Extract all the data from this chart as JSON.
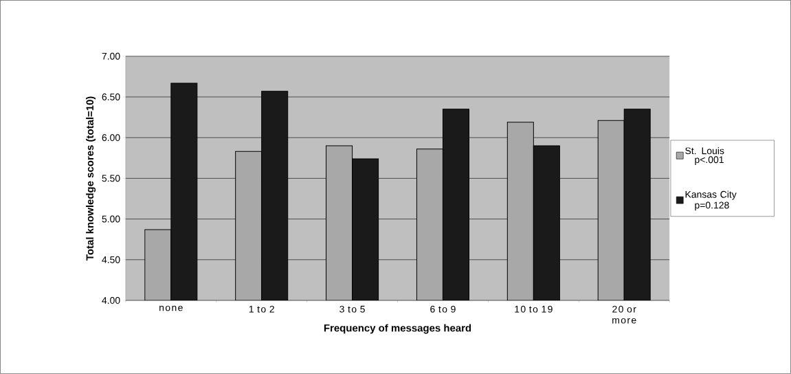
{
  "chart_data": {
    "type": "bar",
    "xlabel": "Frequency of messages heard",
    "ylabel": "Total knowledge scores (total=10)",
    "categories": [
      "none",
      "1 to 2",
      "3 to 5",
      "6 to 9",
      "10 to 19",
      "20 or more"
    ],
    "series": [
      {
        "name": "St. Louis",
        "color": "#a8a8a8",
        "values": [
          4.87,
          5.83,
          5.9,
          5.86,
          6.19,
          6.21
        ]
      },
      {
        "name": "Kansas City",
        "color": "#1a1a1a",
        "values": [
          6.67,
          6.57,
          5.74,
          6.35,
          5.9,
          6.35
        ]
      }
    ],
    "annotations": [
      "p<.001",
      "p=0.128"
    ],
    "ylim": [
      4,
      7
    ],
    "yticks": [
      {
        "value": 4,
        "label": "4.00"
      },
      {
        "value": 4.5,
        "label": "4.50"
      },
      {
        "value": 5,
        "label": "5.00"
      },
      {
        "value": 5.5,
        "label": "5.50"
      },
      {
        "value": 6,
        "label": "6.00"
      },
      {
        "value": 6.5,
        "label": "6.50"
      },
      {
        "value": 7,
        "label": "7.00"
      }
    ],
    "grid": "y",
    "legend": "right"
  }
}
